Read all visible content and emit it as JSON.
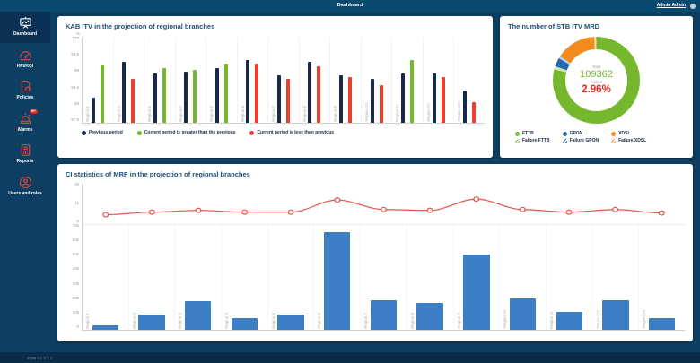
{
  "topbar": {
    "title": "Dashboard",
    "user": "Admin Admin"
  },
  "sidebar": {
    "items": [
      {
        "label": "Dashboard",
        "icon": "dashboard-icon",
        "active": true
      },
      {
        "label": "KPI/KQI",
        "icon": "gauge-icon",
        "active": false
      },
      {
        "label": "Policies",
        "icon": "policy-gear-icon",
        "active": false
      },
      {
        "label": "Alarms",
        "icon": "alarm-siren-icon",
        "active": false,
        "badge": "99+"
      },
      {
        "label": "Reports",
        "icon": "report-document-icon",
        "active": false
      },
      {
        "label": "Users and roles",
        "icon": "user-circle-icon",
        "active": false
      }
    ]
  },
  "footer": {
    "version": "SQM v.1.2.1.1"
  },
  "theme": {
    "topbar_bg": "#0b4a70",
    "sidebar_bg": "#0d3f63",
    "content_bg": "#0d3e61",
    "card_title": "#1f4e79",
    "icon_red": "#e0453a",
    "navy_bar": "#16294d",
    "green": "#76b82d",
    "red": "#e8402c",
    "blue_bar": "#3d7fc4",
    "line_red": "#e2574d"
  },
  "chart_data": [
    {
      "id": "kab_itv",
      "type": "bar",
      "title": "KAB ITV in the projection of regional branches",
      "ylabel": "%",
      "ylim": [
        97.5,
        100
      ],
      "yticks": [
        "100",
        "99.5",
        "99",
        "98.5",
        "98",
        "97.5"
      ],
      "grid": "vertical",
      "categories": [
        "Region 1",
        "Region 2",
        "Region 3",
        "Region 4",
        "Region 5",
        "Region 6",
        "Region 7",
        "Region 8",
        "Region 9",
        "Region 10",
        "Region 11",
        "Region 12",
        "Region 13"
      ],
      "series": [
        {
          "name": "Previous period",
          "color": "#16294d",
          "values": [
            98.25,
            99.3,
            98.95,
            99.0,
            99.1,
            99.35,
            98.9,
            99.3,
            98.9,
            98.8,
            98.95,
            98.95,
            98.45
          ]
        },
        {
          "name": "Current period",
          "colors": {
            "greater": "#76b82d",
            "less": "#e8402c"
          },
          "values": [
            99.2,
            98.8,
            99.1,
            99.05,
            99.25,
            99.25,
            98.8,
            99.15,
            98.85,
            98.6,
            99.35,
            98.85,
            98.1
          ]
        }
      ],
      "legend": [
        {
          "label": "Previous period",
          "color": "#16294d"
        },
        {
          "label": "Current period is greater than the previous",
          "color": "#76b82d"
        },
        {
          "label": "Current period is less than previous",
          "color": "#e8402c"
        }
      ],
      "legend_position": "bottom"
    },
    {
      "id": "stb_itv",
      "type": "pie",
      "title": "The number of STB ITV MRD",
      "center": {
        "total_label": "Total",
        "total_value": "109362",
        "failure_label": "Failure",
        "failure_value": "2.96%"
      },
      "segments": [
        {
          "label": "FTTB",
          "value": 79.0,
          "color": "#76b82d",
          "hatched": false,
          "tint": "#76b82d"
        },
        {
          "label": "Failure FTTB",
          "value": 1.2,
          "color": "#76b82d",
          "hatched": true,
          "tint": "#cfe7ab"
        },
        {
          "label": "GPON",
          "value": 3.2,
          "color": "#2268b2",
          "hatched": false,
          "tint": "#2268b2"
        },
        {
          "label": "Failure GPON",
          "value": 0.9,
          "color": "#2268b2",
          "hatched": true,
          "tint": "#b9d2ec"
        },
        {
          "label": "XDSL",
          "value": 14.9,
          "color": "#f28a1e",
          "hatched": false,
          "tint": "#f28a1e"
        },
        {
          "label": "Failure XDSL",
          "value": 0.8,
          "color": "#f28a1e",
          "hatched": true,
          "tint": "#fad9ae"
        }
      ],
      "legend": [
        [
          {
            "label": "FTTB",
            "color": "#76b82d",
            "hatched": false
          },
          {
            "label": "Failure FTTB",
            "color": "#76b82d",
            "hatched": true
          }
        ],
        [
          {
            "label": "GPON",
            "color": "#2268b2",
            "hatched": false
          },
          {
            "label": "Failure GPON",
            "color": "#2268b2",
            "hatched": true
          }
        ],
        [
          {
            "label": "XDSL",
            "color": "#f28a1e",
            "hatched": false
          },
          {
            "label": "Failure XDSL",
            "color": "#f28a1e",
            "hatched": true
          }
        ]
      ],
      "legend_position": "bottom"
    },
    {
      "id": "ci_mrf",
      "type": "bar+line",
      "title": "CI statistics of MRF in the projection of regional branches",
      "grid": "vertical",
      "categories": [
        "Region 1",
        "Region 2",
        "Region 3",
        "Region 4",
        "Region 5",
        "Region 6",
        "Region 7",
        "Region 8",
        "Region 9",
        "Region 10",
        "Region 11",
        "Region 12",
        "Region 13"
      ],
      "line": {
        "ylim": [
          0,
          2000
        ],
        "yticks": [
          "2k",
          "1k",
          "0"
        ],
        "color": "#e2574d",
        "values": [
          400,
          550,
          650,
          550,
          550,
          1250,
          700,
          650,
          1300,
          700,
          550,
          700,
          500
        ]
      },
      "bar": {
        "ylim": [
          0,
          70000
        ],
        "yticks": [
          "70k",
          "60k",
          "50k",
          "40k",
          "30k",
          "20k",
          "10k",
          "0"
        ],
        "color": "#3d7fc4",
        "values": [
          3000,
          10000,
          19000,
          8000,
          10000,
          65000,
          20000,
          18000,
          50000,
          21000,
          12000,
          20000,
          8000
        ]
      }
    }
  ]
}
